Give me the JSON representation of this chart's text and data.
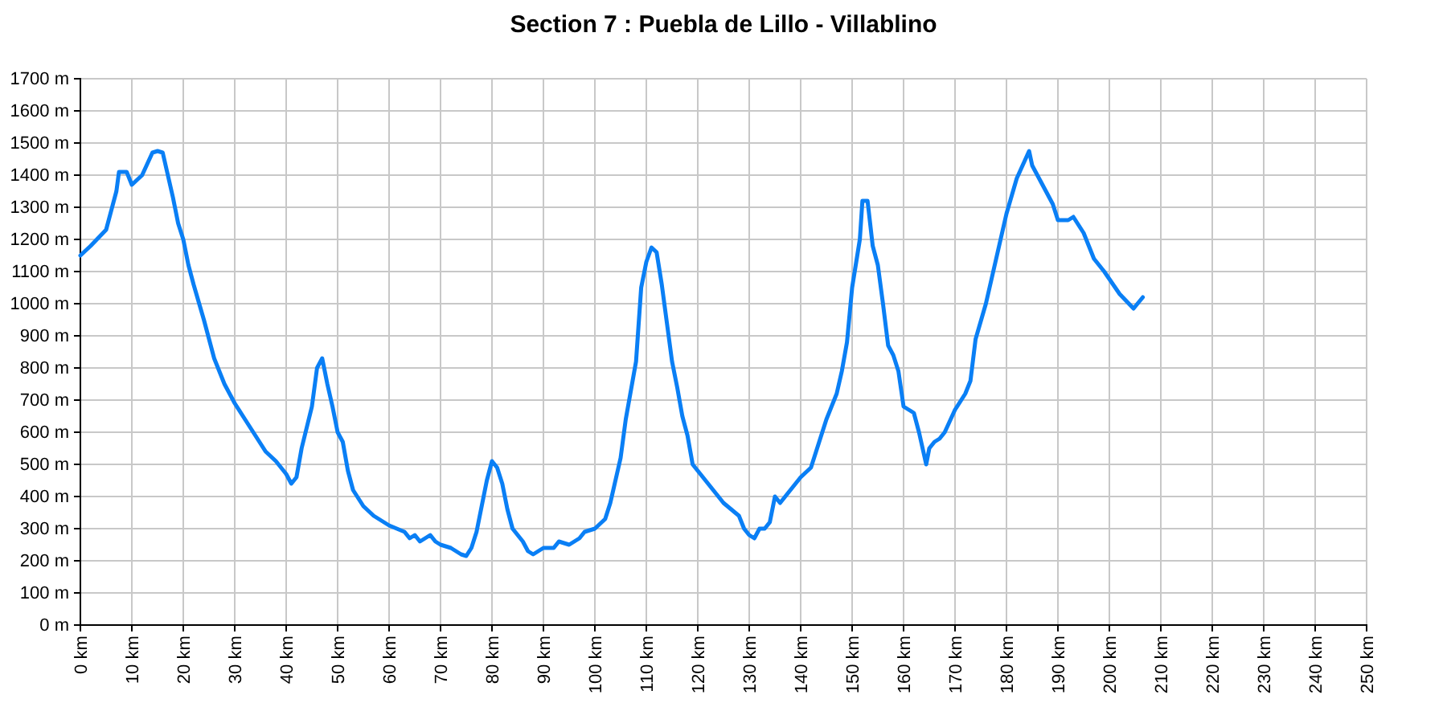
{
  "chart_data": {
    "type": "line",
    "title": "Section 7 : Puebla de Lillo - Villablino",
    "x": [
      0,
      2,
      5,
      7,
      7.5,
      9,
      10,
      12,
      14,
      15,
      16,
      17,
      18,
      19,
      20,
      21,
      22,
      24,
      26,
      28,
      30,
      32,
      34,
      36,
      38,
      40,
      41,
      42,
      43,
      45,
      46,
      47,
      48,
      49,
      50,
      51,
      52,
      53,
      55,
      57,
      59,
      60,
      63,
      64,
      65,
      66,
      67,
      68,
      69,
      70,
      72,
      74,
      75,
      76,
      77,
      78,
      79,
      80,
      81,
      82,
      83,
      84,
      86,
      87,
      88,
      90,
      92,
      93,
      95,
      97,
      98,
      100,
      102,
      103,
      105,
      106,
      108,
      109,
      110,
      111,
      112,
      113,
      114,
      115,
      116,
      117,
      118,
      119,
      120,
      122,
      124,
      125,
      128,
      129,
      130,
      131,
      132,
      133,
      134,
      135,
      136,
      138,
      140,
      142,
      143,
      145,
      147,
      148,
      149,
      150,
      151,
      151.5,
      152,
      153,
      154,
      155,
      156,
      157,
      158,
      159,
      160,
      161,
      162,
      163,
      164.4,
      165,
      166,
      167,
      168,
      170,
      172,
      173,
      174,
      176,
      178,
      180,
      182,
      184.4,
      185,
      186,
      188,
      189,
      190,
      192,
      193,
      195,
      196,
      197,
      199,
      202,
      204.7,
      206.5
    ],
    "series": [
      {
        "color": "#0a7ff5",
        "values": [
          1150,
          1180,
          1230,
          1350,
          1410,
          1410,
          1370,
          1400,
          1470,
          1475,
          1470,
          1400,
          1330,
          1250,
          1200,
          1120,
          1060,
          950,
          830,
          750,
          690,
          640,
          590,
          540,
          510,
          470,
          440,
          460,
          550,
          680,
          800,
          830,
          750,
          680,
          600,
          570,
          480,
          420,
          370,
          340,
          320,
          310,
          290,
          270,
          280,
          260,
          270,
          280,
          260,
          250,
          240,
          220,
          215,
          240,
          290,
          370,
          450,
          510,
          490,
          440,
          360,
          300,
          260,
          230,
          220,
          240,
          240,
          260,
          250,
          270,
          290,
          300,
          330,
          380,
          520,
          640,
          820,
          1050,
          1130,
          1175,
          1160,
          1060,
          940,
          820,
          740,
          650,
          590,
          500,
          480,
          440,
          400,
          380,
          340,
          300,
          280,
          270,
          300,
          300,
          320,
          400,
          380,
          420,
          460,
          490,
          540,
          640,
          720,
          790,
          880,
          1050,
          1150,
          1200,
          1320,
          1320,
          1180,
          1120,
          1000,
          870,
          840,
          790,
          680,
          670,
          660,
          600,
          500,
          550,
          570,
          580,
          600,
          670,
          720,
          760,
          890,
          1000,
          1140,
          1280,
          1390,
          1475,
          1430,
          1400,
          1340,
          1310,
          1260,
          1260,
          1270,
          1220,
          1180,
          1140,
          1100,
          1030,
          985,
          1020
        ]
      }
    ],
    "xlim": [
      0,
      250
    ],
    "xticks": [
      {
        "value": 0,
        "label": "0 km"
      },
      {
        "value": 10,
        "label": "10 km"
      },
      {
        "value": 20,
        "label": "20 km"
      },
      {
        "value": 30,
        "label": "30 km"
      },
      {
        "value": 40,
        "label": "40 km"
      },
      {
        "value": 50,
        "label": "50 km"
      },
      {
        "value": 60,
        "label": "60 km"
      },
      {
        "value": 70,
        "label": "70 km"
      },
      {
        "value": 80,
        "label": "80 km"
      },
      {
        "value": 90,
        "label": "90 km"
      },
      {
        "value": 100,
        "label": "100 km"
      },
      {
        "value": 110,
        "label": "110 km"
      },
      {
        "value": 120,
        "label": "120 km"
      },
      {
        "value": 130,
        "label": "130 km"
      },
      {
        "value": 140,
        "label": "140 km"
      },
      {
        "value": 150,
        "label": "150 km"
      },
      {
        "value": 160,
        "label": "160 km"
      },
      {
        "value": 170,
        "label": "170 km"
      },
      {
        "value": 180,
        "label": "180 km"
      },
      {
        "value": 190,
        "label": "190 km"
      },
      {
        "value": 200,
        "label": "200 km"
      },
      {
        "value": 210,
        "label": "210 km"
      },
      {
        "value": 220,
        "label": "220 km"
      },
      {
        "value": 230,
        "label": "230 km"
      },
      {
        "value": 240,
        "label": "240 km"
      },
      {
        "value": 250,
        "label": "250 km"
      }
    ],
    "ylim": [
      0,
      1700
    ],
    "yticks": [
      {
        "value": 0,
        "label": "0 m"
      },
      {
        "value": 100,
        "label": "100 m"
      },
      {
        "value": 200,
        "label": "200 m"
      },
      {
        "value": 300,
        "label": "300 m"
      },
      {
        "value": 400,
        "label": "400 m"
      },
      {
        "value": 500,
        "label": "500 m"
      },
      {
        "value": 600,
        "label": "600 m"
      },
      {
        "value": 700,
        "label": "700 m"
      },
      {
        "value": 800,
        "label": "800 m"
      },
      {
        "value": 900,
        "label": "900 m"
      },
      {
        "value": 1000,
        "label": "1000 m"
      },
      {
        "value": 1100,
        "label": "1100 m"
      },
      {
        "value": 1200,
        "label": "1200 m"
      },
      {
        "value": 1300,
        "label": "1300 m"
      },
      {
        "value": 1400,
        "label": "1400 m"
      },
      {
        "value": 1500,
        "label": "1500 m"
      },
      {
        "value": 1600,
        "label": "1600 m"
      },
      {
        "value": 1700,
        "label": "1700 m"
      }
    ],
    "grid": true,
    "marker": "none",
    "line_style": "solid"
  }
}
